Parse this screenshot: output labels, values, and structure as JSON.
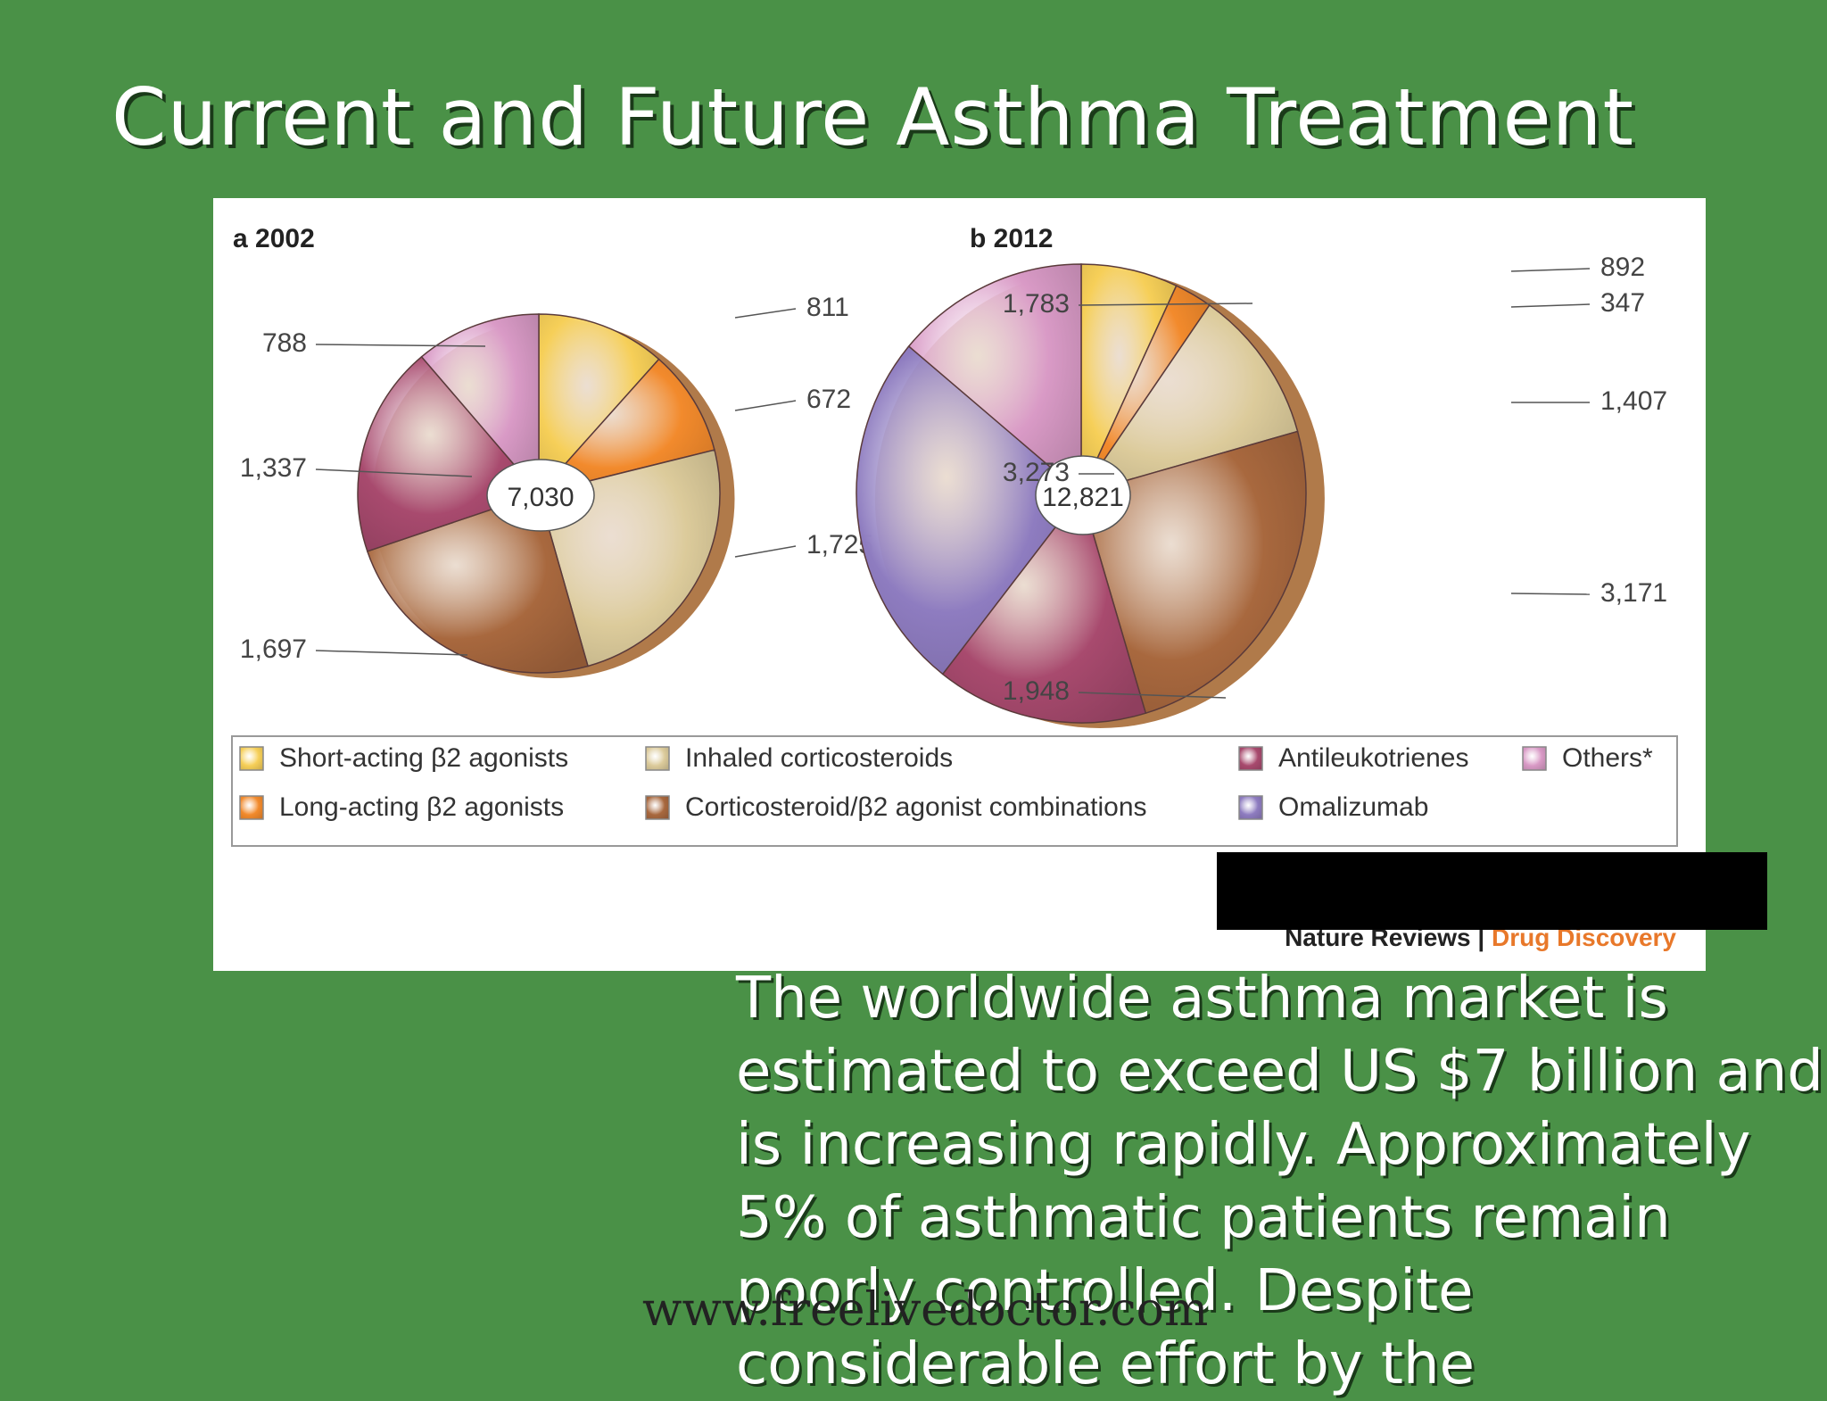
{
  "slide": {
    "title": "Current and Future Asthma Treatment",
    "caption": "The worldwide asthma market is estimated to exceed US $7 billion and is increasing rapidly. Approximately 5% of asthmatic patients remain poorly controlled. Despite considerable effort by the",
    "watermark": "www.freelivedoctor.com",
    "source": {
      "publisher": "Nature Reviews",
      "separator": " | ",
      "journal": "Drug Discovery"
    }
  },
  "colors": {
    "background": "#4a9147",
    "short_acting": "#f6cf58",
    "long_acting": "#f28a2c",
    "inhaled_cs": "#dccb9b",
    "combination": "#a8683e",
    "antileukotrienes": "#a84a6e",
    "omalizumab": "#8e7cc0",
    "others": "#d99ac6",
    "journal_orange": "#e8782a"
  },
  "chart_data": [
    {
      "type": "pie",
      "panel_letter": "a",
      "title": "2002",
      "total_label": "7,030",
      "total": 7030,
      "categories": [
        "Short-acting β2 agonists",
        "Long-acting β2 agonists",
        "Inhaled corticosteroids",
        "Corticosteroid/β2 agonist combinations",
        "Antileukotrienes",
        "Others*"
      ],
      "values": [
        811,
        672,
        1725,
        1697,
        1337,
        788
      ],
      "value_labels": [
        "811",
        "672",
        "1,725",
        "1,697",
        "1,337",
        "788"
      ]
    },
    {
      "type": "pie",
      "panel_letter": "b",
      "title": "2012",
      "total_label": "12,821",
      "total": 12821,
      "categories": [
        "Short-acting β2 agonists",
        "Long-acting β2 agonists",
        "Inhaled corticosteroids",
        "Corticosteroid/β2 agonist combinations",
        "Antileukotrienes",
        "Omalizumab",
        "Others*"
      ],
      "values": [
        892,
        347,
        1407,
        3171,
        1948,
        3273,
        1783
      ],
      "value_labels": [
        "892",
        "347",
        "1,407",
        "3,171",
        "1,948",
        "3,273",
        "1,783"
      ]
    }
  ],
  "legend": {
    "items": [
      {
        "label": "Short-acting β2 agonists",
        "color": "#f6cf58"
      },
      {
        "label": "Long-acting β2 agonists",
        "color": "#f28a2c"
      },
      {
        "label": "Inhaled corticosteroids",
        "color": "#dccb9b"
      },
      {
        "label": "Corticosteroid/β2 agonist combinations",
        "color": "#a8683e"
      },
      {
        "label": "Antileukotrienes",
        "color": "#a84a6e"
      },
      {
        "label": "Omalizumab",
        "color": "#8e7cc0"
      },
      {
        "label": "Others*",
        "color": "#d99ac6"
      }
    ]
  }
}
